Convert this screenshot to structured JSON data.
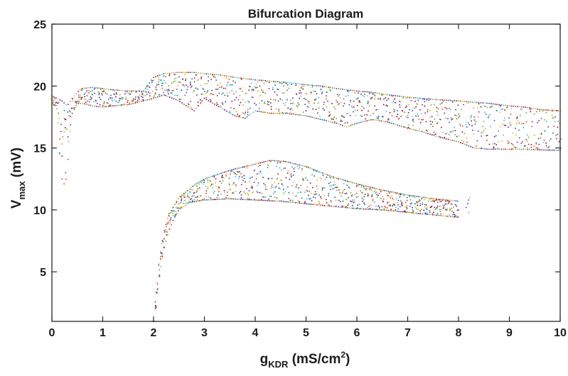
{
  "chart_data": {
    "type": "scatter",
    "title": "Bifurcation Diagram",
    "xlabel": {
      "main": "g",
      "sub": "KDR",
      "rest": " (mS/cm",
      "sup": "2",
      "end": ")"
    },
    "ylabel": {
      "main": "V",
      "sub": "max",
      "rest": " (mV)"
    },
    "xlim": [
      0,
      10
    ],
    "ylim": [
      1,
      25
    ],
    "xticks": [
      0,
      1,
      2,
      3,
      4,
      5,
      6,
      7,
      8,
      9,
      10
    ],
    "yticks": [
      5,
      10,
      15,
      20,
      25
    ],
    "grid": false,
    "legend": "none",
    "marker_colors": [
      "#0072BD",
      "#D95319",
      "#EDB120",
      "#7E2F8E",
      "#77AC30",
      "#4DBEEE",
      "#A2142F"
    ],
    "series": [
      {
        "role": "upper-branch-lower-envelope",
        "x": [
          0.0,
          0.1,
          0.15,
          0.2,
          0.25,
          0.3,
          0.35,
          0.4,
          0.5,
          0.6,
          0.8,
          1.0,
          1.2,
          1.5,
          1.8,
          2.0,
          2.2,
          2.5,
          2.8,
          3.0,
          3.3,
          3.6,
          3.8,
          4.0,
          4.3,
          4.6,
          5.0,
          5.3,
          5.6,
          5.8,
          6.0,
          6.3,
          6.6,
          7.0,
          7.3,
          7.6,
          8.0,
          8.3,
          8.6,
          9.0,
          9.3,
          9.6,
          10.0
        ],
        "y": [
          18.5,
          18.4,
          15.0,
          12.5,
          12.0,
          12.8,
          16.0,
          17.8,
          18.6,
          18.6,
          18.4,
          18.3,
          18.4,
          18.5,
          18.8,
          19.0,
          19.3,
          18.8,
          18.0,
          19.0,
          18.3,
          17.6,
          17.4,
          18.0,
          17.8,
          17.8,
          17.6,
          17.3,
          17.0,
          16.7,
          17.0,
          17.3,
          17.1,
          16.6,
          16.3,
          15.9,
          15.5,
          15.0,
          14.9,
          14.9,
          14.9,
          14.85,
          14.8
        ]
      },
      {
        "role": "upper-branch-upper-envelope",
        "x": [
          0.0,
          0.1,
          0.2,
          0.3,
          0.4,
          0.5,
          0.6,
          0.8,
          1.0,
          1.2,
          1.5,
          1.8,
          2.0,
          2.2,
          2.5,
          2.8,
          3.0,
          3.3,
          3.6,
          4.0,
          4.3,
          4.6,
          5.0,
          5.3,
          5.6,
          6.0,
          6.3,
          6.6,
          7.0,
          7.3,
          7.6,
          8.0,
          8.3,
          8.6,
          9.0,
          9.3,
          9.6,
          10.0
        ],
        "y": [
          19.2,
          19.0,
          18.8,
          18.4,
          19.0,
          19.5,
          19.8,
          19.9,
          19.8,
          19.7,
          19.6,
          19.6,
          20.7,
          21.0,
          21.1,
          21.1,
          21.0,
          20.9,
          20.7,
          20.5,
          20.4,
          20.3,
          20.1,
          20.0,
          19.8,
          19.6,
          19.5,
          19.3,
          19.1,
          19.0,
          18.9,
          18.8,
          18.7,
          18.6,
          18.4,
          18.3,
          18.1,
          18.0
        ]
      },
      {
        "role": "lower-branch-lower-envelope",
        "x": [
          2.0,
          2.05,
          2.1,
          2.2,
          2.3,
          2.4,
          2.5,
          2.7,
          3.0,
          3.5,
          4.0,
          4.5,
          5.0,
          5.5,
          6.0,
          6.5,
          7.0,
          7.5,
          8.0
        ],
        "y": [
          1.0,
          2.5,
          4.5,
          6.8,
          8.3,
          9.3,
          10.0,
          10.6,
          10.8,
          10.9,
          10.8,
          10.7,
          10.5,
          10.3,
          10.1,
          10.0,
          9.8,
          9.6,
          9.4
        ]
      },
      {
        "role": "lower-branch-upper-envelope",
        "x": [
          2.0,
          2.1,
          2.2,
          2.3,
          2.5,
          2.8,
          3.0,
          3.5,
          4.0,
          4.3,
          4.6,
          5.0,
          5.5,
          6.0,
          6.5,
          7.0,
          7.5,
          8.0
        ],
        "y": [
          1.0,
          5.5,
          8.2,
          9.6,
          11.0,
          12.0,
          12.5,
          13.2,
          13.7,
          14.0,
          13.9,
          13.5,
          12.7,
          12.1,
          11.6,
          11.2,
          10.9,
          10.7
        ]
      },
      {
        "role": "isolated-points",
        "x": [
          8.15,
          8.18,
          8.2,
          8.22,
          8.2
        ],
        "y": [
          10.2,
          10.5,
          10.8,
          11.0,
          9.8
        ]
      }
    ]
  }
}
